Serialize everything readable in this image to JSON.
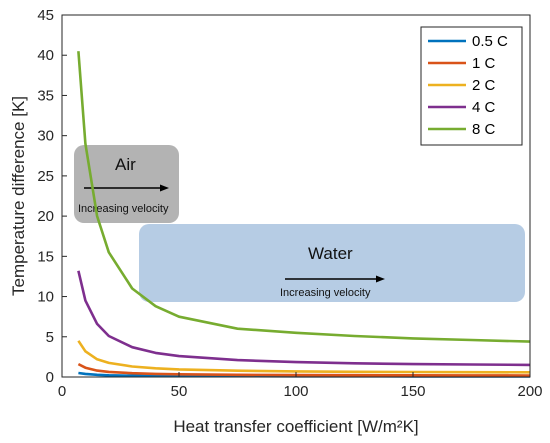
{
  "chart_data": {
    "type": "line",
    "xlabel": "Heat transfer coefficient [W/m²K]",
    "ylabel": "Temperature difference [K]",
    "xlim": [
      0,
      200
    ],
    "ylim": [
      0,
      45
    ],
    "xticks": [
      "0",
      "50",
      "100",
      "150",
      "200"
    ],
    "yticks": [
      "0",
      "5",
      "10",
      "15",
      "20",
      "25",
      "30",
      "35",
      "40",
      "45"
    ],
    "grid": false,
    "legend_position": "top-right",
    "x": [
      7,
      10,
      15,
      20,
      30,
      40,
      50,
      75,
      100,
      125,
      150,
      175,
      200
    ],
    "series": [
      {
        "name": "0.5 C",
        "color": "#0072bd",
        "values": [
          0.5,
          0.38,
          0.27,
          0.21,
          0.16,
          0.13,
          0.12,
          0.1,
          0.09,
          0.085,
          0.08,
          0.078,
          0.075
        ]
      },
      {
        "name": "1 C",
        "color": "#d95319",
        "values": [
          1.6,
          1.15,
          0.8,
          0.63,
          0.47,
          0.39,
          0.34,
          0.27,
          0.24,
          0.22,
          0.21,
          0.2,
          0.19
        ]
      },
      {
        "name": "2 C",
        "color": "#edb120",
        "values": [
          4.5,
          3.2,
          2.2,
          1.75,
          1.3,
          1.08,
          0.95,
          0.78,
          0.7,
          0.65,
          0.62,
          0.6,
          0.58
        ]
      },
      {
        "name": "4 C",
        "color": "#7e2f8e",
        "values": [
          13.2,
          9.5,
          6.6,
          5.1,
          3.7,
          3.0,
          2.6,
          2.1,
          1.85,
          1.7,
          1.6,
          1.55,
          1.5
        ]
      },
      {
        "name": "8 C",
        "color": "#77ac30",
        "values": [
          40.5,
          29,
          20,
          15.5,
          11,
          8.8,
          7.5,
          6.0,
          5.5,
          5.1,
          4.8,
          4.6,
          4.4
        ]
      }
    ],
    "annotations": [
      {
        "title": "Air",
        "subtitle": "Increasing velocity"
      },
      {
        "title": "Water",
        "subtitle": "Increasing velocity"
      }
    ]
  }
}
